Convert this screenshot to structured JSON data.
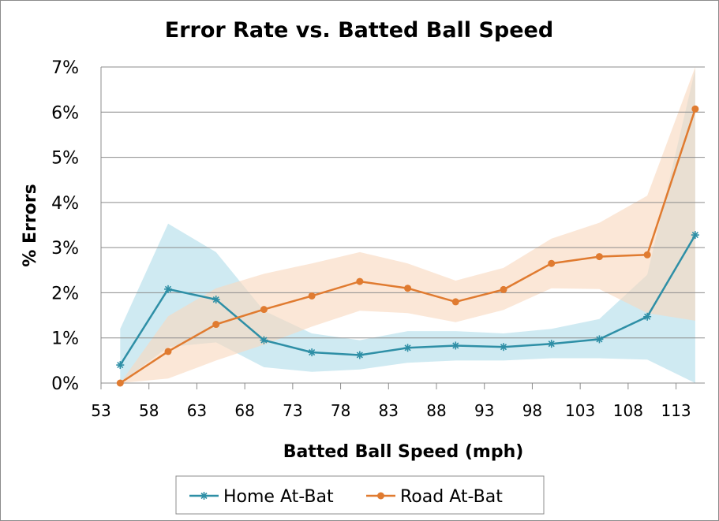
{
  "chart_data": {
    "type": "line",
    "title": "Error Rate vs. Batted Ball Speed",
    "xlabel": "Batted Ball Speed (mph)",
    "ylabel": "% Errors",
    "x_tick_labels": [
      "53",
      "58",
      "63",
      "68",
      "73",
      "78",
      "83",
      "88",
      "93",
      "98",
      "103",
      "108",
      "113"
    ],
    "y_tick_labels": [
      "0%",
      "1%",
      "2%",
      "3%",
      "4%",
      "5%",
      "6%",
      "7%"
    ],
    "xlim": [
      53,
      116
    ],
    "ylim": [
      0,
      7
    ],
    "grid": "horizontal",
    "legend_position": "bottom",
    "x": [
      55,
      60,
      65,
      70,
      75,
      80,
      85,
      90,
      95,
      100,
      105,
      110,
      115
    ],
    "series": [
      {
        "name": "Home At-Bat",
        "color": "#2e8fa6",
        "band_color": "#bfe3ee",
        "marker": "asterisk",
        "values": [
          0.4,
          2.08,
          1.85,
          0.95,
          0.68,
          0.62,
          0.78,
          0.83,
          0.8,
          0.87,
          0.97,
          1.47,
          3.28
        ],
        "lower": [
          0.0,
          0.8,
          0.9,
          0.35,
          0.25,
          0.3,
          0.45,
          0.5,
          0.5,
          0.55,
          0.55,
          0.52,
          0.0
        ],
        "upper": [
          1.2,
          3.53,
          2.9,
          1.6,
          1.1,
          0.95,
          1.15,
          1.15,
          1.1,
          1.2,
          1.42,
          2.4,
          6.95
        ]
      },
      {
        "name": "Road At-Bat",
        "color": "#e07b30",
        "band_color": "#f9d9bf",
        "marker": "circle",
        "values": [
          0.0,
          0.7,
          1.3,
          1.63,
          1.93,
          2.25,
          2.1,
          1.8,
          2.07,
          2.65,
          2.8,
          2.84,
          6.07
        ],
        "lower": [
          0.0,
          0.1,
          0.5,
          0.85,
          1.25,
          1.6,
          1.55,
          1.35,
          1.62,
          2.1,
          2.08,
          1.55,
          1.38
        ],
        "upper": [
          0.0,
          1.48,
          2.1,
          2.42,
          2.65,
          2.9,
          2.65,
          2.27,
          2.55,
          3.2,
          3.55,
          4.15,
          7.0
        ]
      }
    ]
  }
}
